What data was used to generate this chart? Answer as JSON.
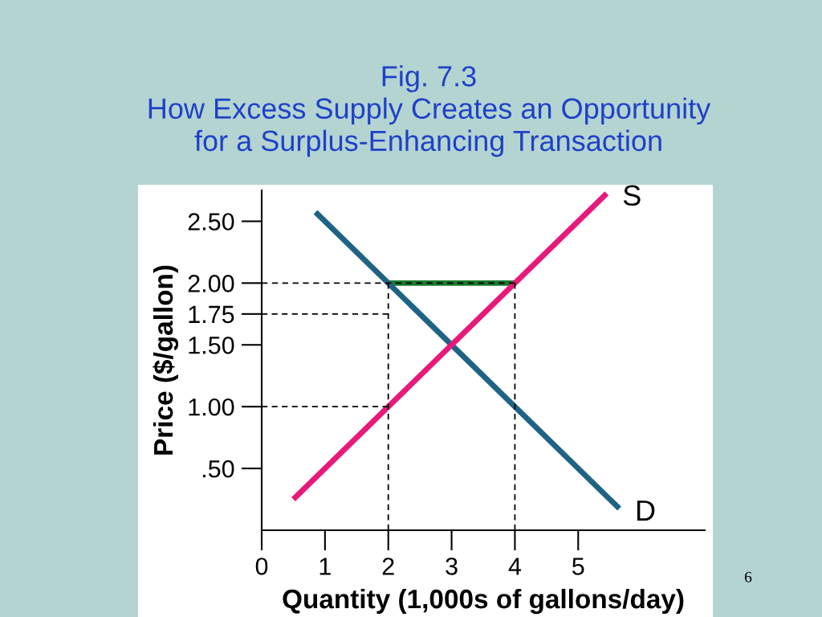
{
  "chart_data": {
    "type": "line",
    "title": "Fig. 7.3\nHow Excess Supply Creates an Opportunity\nfor a Surplus-Enhancing Transaction",
    "xlabel": "Quantity (1,000s of gallons/day)",
    "ylabel": "Price ($/gallon)",
    "xlim": [
      0,
      7.0
    ],
    "ylim": [
      0,
      2.75
    ],
    "xticks": [
      0,
      1,
      2,
      3,
      4,
      5
    ],
    "yticks": [
      {
        "value": 0.5,
        "label": ".50"
      },
      {
        "value": 1.0,
        "label": "1.00"
      },
      {
        "value": 1.5,
        "label": "1.50"
      },
      {
        "value": 1.75,
        "label": "1.75"
      },
      {
        "value": 2.0,
        "label": "2.00"
      },
      {
        "value": 2.5,
        "label": "2.50"
      }
    ],
    "grid": false,
    "legend": false,
    "marker": "none",
    "series": [
      {
        "color": "#000000",
        "line_style": "dashed",
        "x": [
          0,
          4
        ],
        "values": [
          2.0,
          2.0
        ]
      },
      {
        "color": "#000000",
        "line_style": "dashed",
        "x": [
          0,
          2
        ],
        "values": [
          1.75,
          1.75
        ]
      },
      {
        "color": "#000000",
        "line_style": "dashed",
        "x": [
          0,
          2
        ],
        "values": [
          1.0,
          1.0
        ]
      },
      {
        "color": "#000000",
        "line_style": "dashed",
        "x": [
          2,
          2
        ],
        "values": [
          0,
          2.0
        ]
      },
      {
        "color": "#000000",
        "line_style": "dashed",
        "x": [
          4,
          4
        ],
        "values": [
          0,
          2.0
        ]
      },
      {
        "color": "#1a7a2e",
        "line_style": "solid",
        "x": [
          2,
          4
        ],
        "values": [
          2.0,
          2.0
        ]
      },
      {
        "color": "#1f6384",
        "line_style": "solid",
        "x": [
          0.85,
          5.65
        ],
        "values": [
          2.575,
          0.175
        ]
      },
      {
        "color": "#e8197a",
        "line_style": "solid",
        "x": [
          0.5,
          5.45
        ],
        "values": [
          0.25,
          2.725
        ]
      }
    ],
    "annotations": [
      {
        "text": "S",
        "x": 5.45,
        "y": 2.725
      },
      {
        "text": "D",
        "x": 5.65,
        "y": 0.175
      },
      "6"
    ]
  }
}
